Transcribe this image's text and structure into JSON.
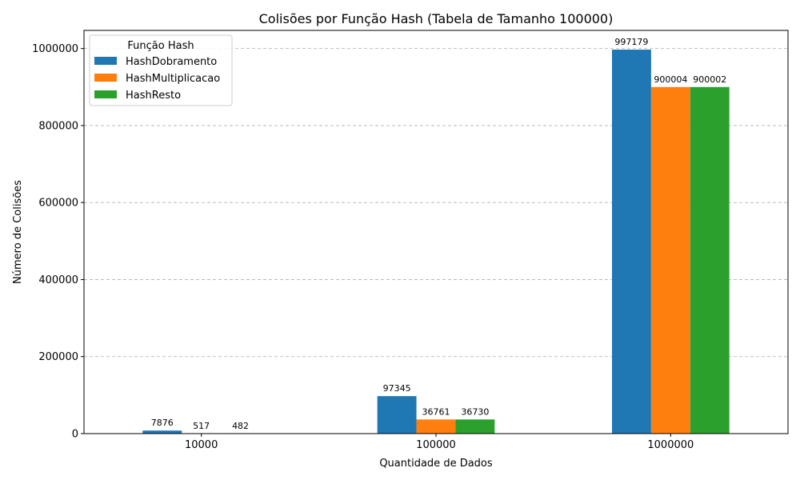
{
  "chart_data": {
    "type": "bar",
    "title": "Colisões por Função Hash (Tabela de Tamanho 100000)",
    "xlabel": "Quantidade de Dados",
    "ylabel": "Número de Colisões",
    "categories": [
      "10000",
      "100000",
      "1000000"
    ],
    "series": [
      {
        "name": "HashDobramento",
        "values": [
          7876,
          97345,
          997179
        ],
        "color": "#1f77b4"
      },
      {
        "name": "HashMultiplicacao",
        "values": [
          517,
          36761,
          900004
        ],
        "color": "#ff7f0e"
      },
      {
        "name": "HashResto",
        "values": [
          482,
          36730,
          900002
        ],
        "color": "#2ca02c"
      }
    ],
    "ylim": [
      0,
      1047037
    ],
    "yticks": [
      0,
      200000,
      400000,
      600000,
      800000,
      1000000
    ],
    "grid": true,
    "legend": {
      "title": "Função Hash",
      "placement": "top-left"
    }
  }
}
